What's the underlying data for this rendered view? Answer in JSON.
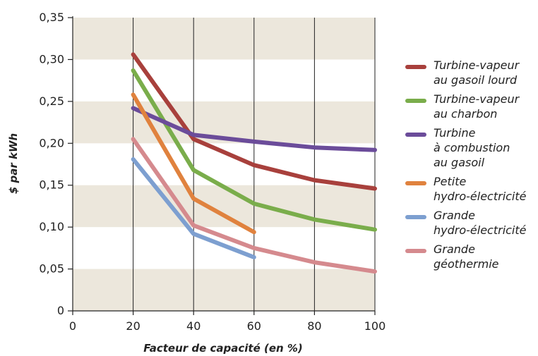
{
  "chart_data": {
    "type": "line",
    "xlabel": "Facteur de capacité (en %)",
    "ylabel": "$ par kWh",
    "x_ticks": [
      "0",
      "20",
      "40",
      "60",
      "80",
      "100"
    ],
    "y_ticks": [
      "0",
      "0,05",
      "0,10",
      "0,15",
      "0,20",
      "0,25",
      "0,30",
      "0,35"
    ],
    "xlim": [
      0,
      100
    ],
    "ylim": [
      0,
      0.35
    ],
    "grid": "vertical lines at 20, 40, 60, 80, 100; alternating horizontal bands",
    "legend_position": "right",
    "series": [
      {
        "name": "Turbine-vapeur\nau gasoil lourd",
        "color": "#a8403c",
        "x": [
          20,
          40,
          60,
          80,
          100
        ],
        "y": [
          0.306,
          0.205,
          0.174,
          0.156,
          0.146
        ]
      },
      {
        "name": "Turbine-vapeur\nau charbon",
        "color": "#7aad4b",
        "x": [
          20,
          40,
          60,
          80,
          100
        ],
        "y": [
          0.287,
          0.168,
          0.128,
          0.109,
          0.097
        ]
      },
      {
        "name": "Turbine\nà combustion\nau gasoil",
        "color": "#6b4c9a",
        "x": [
          20,
          40,
          60,
          80,
          100
        ],
        "y": [
          0.242,
          0.21,
          0.202,
          0.195,
          0.192
        ]
      },
      {
        "name": "Petite\nhydro-électricité",
        "color": "#e0823e",
        "x": [
          20,
          40,
          60
        ],
        "y": [
          0.258,
          0.134,
          0.094
        ]
      },
      {
        "name": "Grande\nhydro-électricité",
        "color": "#7d9fd0",
        "x": [
          20,
          40,
          60
        ],
        "y": [
          0.181,
          0.092,
          0.064
        ]
      },
      {
        "name": "Grande\ngéothermie",
        "color": "#d58a8e",
        "x": [
          20,
          40,
          60,
          80,
          100
        ],
        "y": [
          0.205,
          0.102,
          0.075,
          0.058,
          0.047
        ]
      }
    ]
  },
  "colors": {
    "band": "#ece7dc",
    "axis": "#222222",
    "gridline": "#222222"
  }
}
